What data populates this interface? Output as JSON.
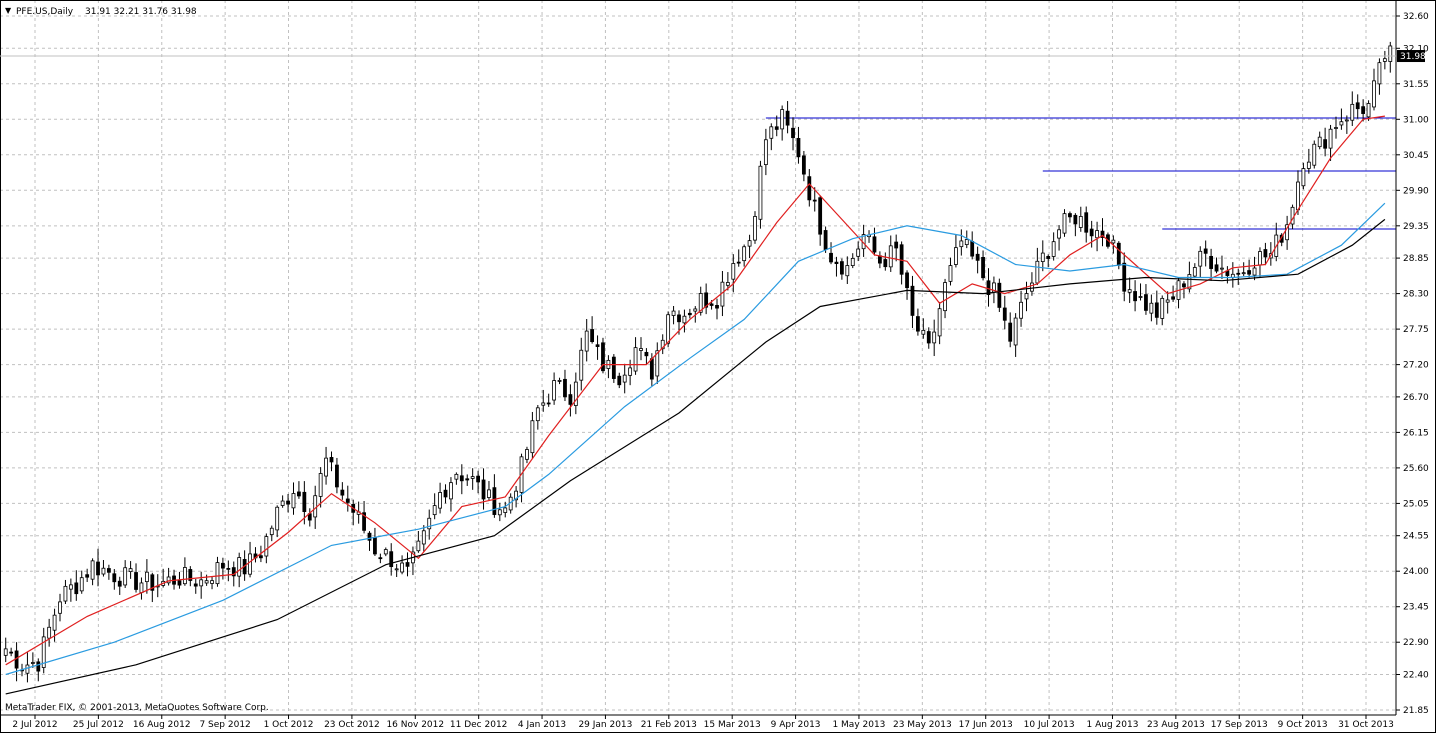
{
  "header": {
    "symbol": "PFE.US,Daily",
    "ohlc": "31.91 32.21 31.76 31.98"
  },
  "footer": {
    "copyright": "MetaTrader FIX, © 2001-2013, MetaQuotes Software Corp."
  },
  "colors": {
    "up_candle": "#ffffff",
    "down_candle": "#000000",
    "candle_outline": "#000000",
    "ma_fast": "#e02020",
    "ma_mid": "#2a9be0",
    "ma_slow": "#000000",
    "hline": "#0000cc",
    "grid": "#c0c0c0",
    "price_tag_bg": "#000000",
    "price_tag_text": "#ffffff"
  },
  "chart_data": {
    "type": "candlestick",
    "title": "PFE.US,Daily",
    "grid": true,
    "y_axis": {
      "side": "right",
      "range": [
        21.85,
        32.6
      ],
      "ticks": [
        "32.60",
        "32.10",
        "31.55",
        "31.00",
        "30.45",
        "29.90",
        "29.35",
        "28.85",
        "28.30",
        "27.75",
        "27.20",
        "26.70",
        "26.15",
        "25.60",
        "25.05",
        "24.55",
        "24.00",
        "23.45",
        "22.90",
        "22.40",
        "21.85"
      ]
    },
    "x_axis": {
      "ticks": [
        "2 Jul 2012",
        "25 Jul 2012",
        "16 Aug 2012",
        "7 Sep 2012",
        "1 Oct 2012",
        "23 Oct 2012",
        "16 Nov 2012",
        "11 Dec 2012",
        "4 Jan 2013",
        "29 Jan 2013",
        "21 Feb 2013",
        "15 Mar 2013",
        "9 Apr 2013",
        "1 May 2013",
        "23 May 2013",
        "17 Jun 2013",
        "10 Jul 2013",
        "1 Aug 2013",
        "23 Aug 2013",
        "17 Sep 2013",
        "9 Oct 2013",
        "31 Oct 2013"
      ]
    },
    "current_price": "31.98",
    "price_path": [
      [
        0,
        22.8
      ],
      [
        3,
        22.55
      ],
      [
        6,
        22.6
      ],
      [
        10,
        23.6
      ],
      [
        13,
        23.8
      ],
      [
        16,
        24.1
      ],
      [
        20,
        23.95
      ],
      [
        24,
        23.85
      ],
      [
        28,
        23.8
      ],
      [
        32,
        23.9
      ],
      [
        36,
        23.85
      ],
      [
        40,
        24.1
      ],
      [
        44,
        24.05
      ],
      [
        47,
        24.3
      ],
      [
        50,
        24.9
      ],
      [
        53,
        25.3
      ],
      [
        56,
        24.95
      ],
      [
        59,
        25.7
      ],
      [
        62,
        25.2
      ],
      [
        65,
        24.8
      ],
      [
        68,
        24.35
      ],
      [
        71,
        24.2
      ],
      [
        74,
        23.95
      ],
      [
        77,
        24.5
      ],
      [
        80,
        25.2
      ],
      [
        83,
        25.55
      ],
      [
        86,
        25.4
      ],
      [
        89,
        25.1
      ],
      [
        92,
        24.95
      ],
      [
        95,
        25.6
      ],
      [
        98,
        26.5
      ],
      [
        101,
        26.85
      ],
      [
        104,
        26.75
      ],
      [
        107,
        27.65
      ],
      [
        110,
        27.2
      ],
      [
        113,
        27.05
      ],
      [
        116,
        27.45
      ],
      [
        119,
        27.1
      ],
      [
        122,
        28.05
      ],
      [
        125,
        28.0
      ],
      [
        128,
        28.2
      ],
      [
        131,
        28.25
      ],
      [
        134,
        28.8
      ],
      [
        137,
        29.15
      ],
      [
        140,
        30.7
      ],
      [
        143,
        31.0
      ],
      [
        146,
        30.5
      ],
      [
        149,
        29.6
      ],
      [
        152,
        28.9
      ],
      [
        155,
        28.7
      ],
      [
        158,
        29.2
      ],
      [
        161,
        28.8
      ],
      [
        164,
        28.95
      ],
      [
        167,
        27.9
      ],
      [
        170,
        27.4
      ],
      [
        173,
        28.4
      ],
      [
        176,
        29.1
      ],
      [
        179,
        28.7
      ],
      [
        182,
        28.3
      ],
      [
        185,
        27.6
      ],
      [
        188,
        28.3
      ],
      [
        191,
        28.85
      ],
      [
        194,
        29.3
      ],
      [
        197,
        29.5
      ],
      [
        200,
        29.3
      ],
      [
        203,
        29.2
      ],
      [
        206,
        28.5
      ],
      [
        209,
        28.2
      ],
      [
        212,
        28.0
      ],
      [
        215,
        28.25
      ],
      [
        218,
        28.65
      ],
      [
        221,
        28.9
      ],
      [
        224,
        28.7
      ],
      [
        227,
        28.6
      ],
      [
        230,
        28.85
      ],
      [
        233,
        28.9
      ],
      [
        236,
        29.4
      ],
      [
        239,
        30.4
      ],
      [
        242,
        30.6
      ],
      [
        245,
        30.95
      ],
      [
        248,
        31.15
      ],
      [
        251,
        31.2
      ],
      [
        254,
        31.98
      ]
    ],
    "series": [
      {
        "name": "",
        "role": "ma_fast",
        "values": [
          [
            0,
            22.55
          ],
          [
            15,
            23.3
          ],
          [
            30,
            23.85
          ],
          [
            42,
            23.95
          ],
          [
            52,
            24.6
          ],
          [
            60,
            25.2
          ],
          [
            68,
            24.75
          ],
          [
            76,
            24.2
          ],
          [
            84,
            25.0
          ],
          [
            92,
            25.15
          ],
          [
            100,
            26.1
          ],
          [
            110,
            27.2
          ],
          [
            118,
            27.2
          ],
          [
            126,
            27.9
          ],
          [
            134,
            28.45
          ],
          [
            142,
            29.4
          ],
          [
            148,
            30.0
          ],
          [
            154,
            29.45
          ],
          [
            160,
            28.9
          ],
          [
            166,
            28.8
          ],
          [
            172,
            28.15
          ],
          [
            178,
            28.45
          ],
          [
            184,
            28.3
          ],
          [
            190,
            28.45
          ],
          [
            196,
            28.9
          ],
          [
            202,
            29.2
          ],
          [
            208,
            28.75
          ],
          [
            214,
            28.3
          ],
          [
            220,
            28.45
          ],
          [
            226,
            28.7
          ],
          [
            232,
            28.75
          ],
          [
            238,
            29.6
          ],
          [
            244,
            30.4
          ],
          [
            250,
            31.0
          ],
          [
            254,
            31.05
          ]
        ]
      },
      {
        "name": "",
        "role": "ma_mid",
        "values": [
          [
            0,
            22.4
          ],
          [
            20,
            22.9
          ],
          [
            40,
            23.55
          ],
          [
            60,
            24.4
          ],
          [
            76,
            24.65
          ],
          [
            92,
            25.0
          ],
          [
            100,
            25.5
          ],
          [
            114,
            26.55
          ],
          [
            126,
            27.3
          ],
          [
            136,
            27.9
          ],
          [
            146,
            28.8
          ],
          [
            156,
            29.15
          ],
          [
            166,
            29.35
          ],
          [
            176,
            29.2
          ],
          [
            186,
            28.75
          ],
          [
            196,
            28.65
          ],
          [
            206,
            28.75
          ],
          [
            216,
            28.55
          ],
          [
            226,
            28.55
          ],
          [
            236,
            28.6
          ],
          [
            246,
            29.05
          ],
          [
            254,
            29.7
          ]
        ]
      },
      {
        "name": "",
        "role": "ma_slow",
        "values": [
          [
            0,
            22.1
          ],
          [
            24,
            22.55
          ],
          [
            50,
            23.25
          ],
          [
            70,
            24.1
          ],
          [
            90,
            24.55
          ],
          [
            104,
            25.4
          ],
          [
            124,
            26.45
          ],
          [
            140,
            27.55
          ],
          [
            150,
            28.1
          ],
          [
            166,
            28.35
          ],
          [
            180,
            28.3
          ],
          [
            196,
            28.45
          ],
          [
            210,
            28.55
          ],
          [
            224,
            28.5
          ],
          [
            238,
            28.6
          ],
          [
            248,
            29.05
          ],
          [
            254,
            29.45
          ]
        ]
      }
    ],
    "horizontal_lines": [
      {
        "from": 140,
        "to": 260,
        "value": 31.02
      },
      {
        "from": 191,
        "to": 260,
        "value": 30.2
      },
      {
        "from": 213,
        "to": 260,
        "value": 29.3
      }
    ]
  }
}
